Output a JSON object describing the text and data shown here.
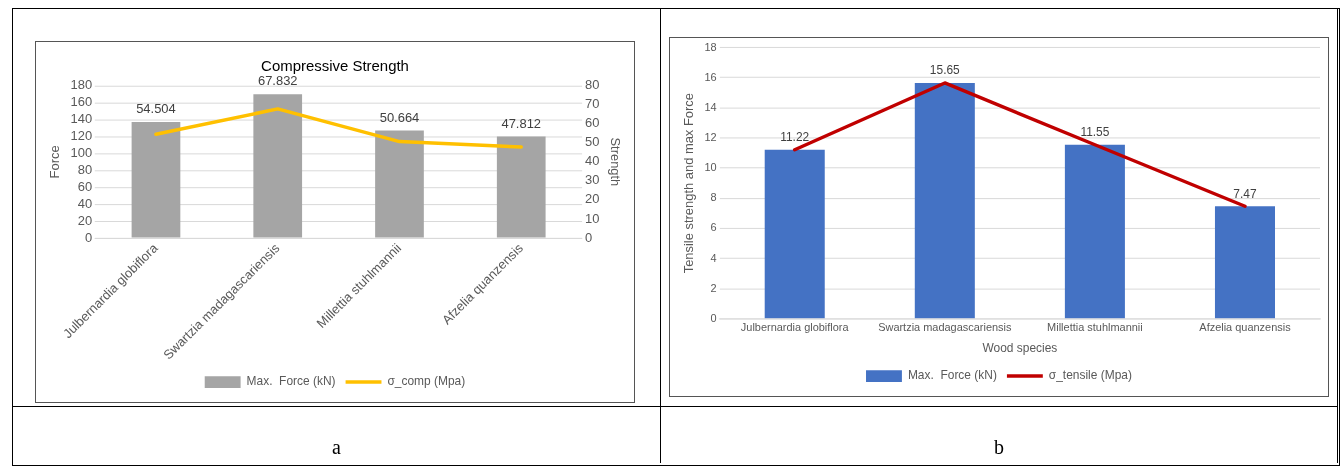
{
  "chart_data": [
    {
      "type": "bar",
      "title": "Compressive Strength",
      "ylabel": "Force",
      "y2label": "Strength",
      "categories": [
        "Julbernardia globiflora",
        "Swartzia madagascariensis",
        "Millettia stuhlmannii",
        "Afzelia quanzensis"
      ],
      "series": [
        {
          "name": "Max.  Force (kN)",
          "color": "#a5a5a5",
          "values": [
            137,
            170,
            127,
            120
          ]
        },
        {
          "name": "σ_comp (Mpa)",
          "type": "line",
          "axis": "y2",
          "color": "#ffc000",
          "values": [
            54.504,
            67.832,
            50.664,
            47.812
          ],
          "value_labels": [
            "54.504",
            "67.832",
            "50.664",
            "47.812"
          ]
        }
      ],
      "ylim": [
        0,
        180
      ],
      "yticks": [
        0,
        20,
        40,
        60,
        80,
        100,
        120,
        140,
        160,
        180
      ],
      "y2lim": [
        0,
        80
      ],
      "y2ticks": [
        0,
        10,
        20,
        30,
        40,
        50,
        60,
        70,
        80
      ],
      "grid": "y",
      "legend": "bottom",
      "marker": "none",
      "annotations": [
        "a"
      ]
    },
    {
      "type": "bar",
      "xlabel": "Wood species",
      "ylabel": "Tensile strength and max Force",
      "categories": [
        "Julbernardia globiflora",
        "Swartzia madagascariensis",
        "Millettia stuhlmannii",
        "Afzelia quanzensis"
      ],
      "series": [
        {
          "name": "Max.  Force (kN)",
          "color": "#4472c4",
          "values": [
            11.22,
            15.65,
            11.55,
            7.47
          ],
          "value_labels": [
            "11.22",
            "15.65",
            "11.55",
            "7.47"
          ]
        },
        {
          "name": "σ_tensile (Mpa)",
          "type": "line",
          "color": "#c00000",
          "values": [
            11.22,
            15.65,
            11.55,
            7.47
          ]
        }
      ],
      "ylim": [
        0,
        18
      ],
      "yticks": [
        0,
        2,
        4,
        6,
        8,
        10,
        12,
        14,
        16,
        18
      ],
      "grid": "y",
      "legend": "bottom",
      "marker": "none",
      "annotations": [
        "b"
      ]
    }
  ]
}
